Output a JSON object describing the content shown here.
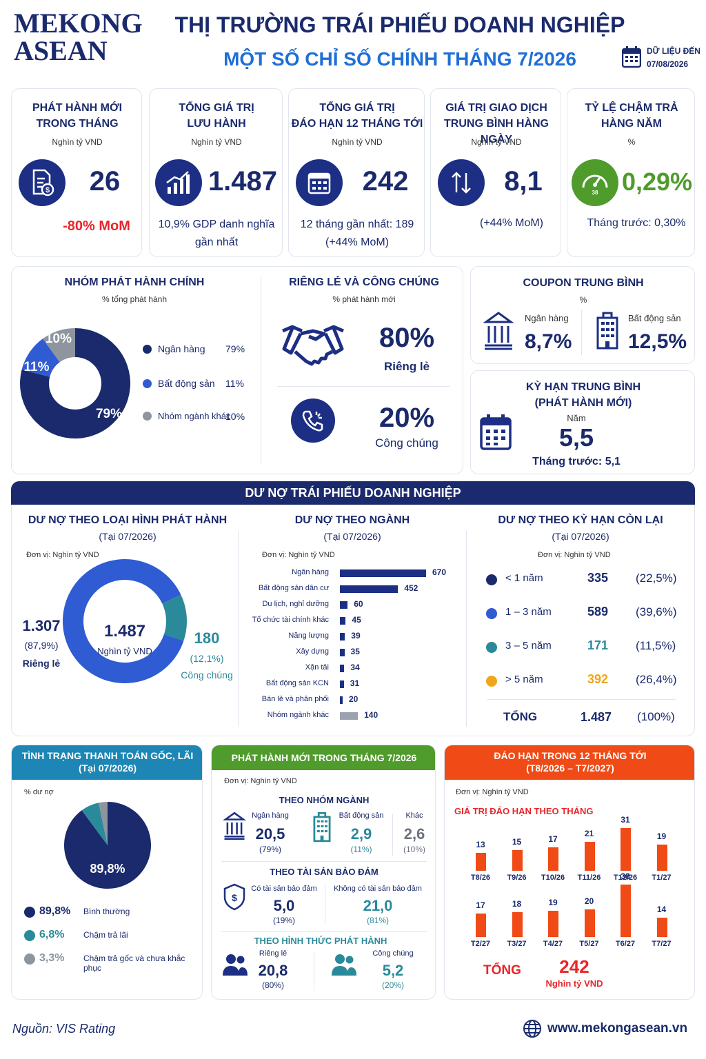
{
  "brand": {
    "line1": "MEKONG",
    "line2": "ASEAN"
  },
  "header": {
    "title": "THỊ TRƯỜNG TRÁI PHIẾU DOANH NGHIỆP",
    "subtitle": "MỘT SỐ CHỈ SỐ CHÍNH THÁNG 7/2026",
    "date_label": "DỮ LIỆU ĐẾN",
    "date_value": "07/08/2026"
  },
  "kpis": [
    {
      "title1": "PHÁT HÀNH MỚI",
      "title2": "TRONG THÁNG",
      "unit": "Nghìn tỷ VND",
      "value": "26",
      "note1": "-80% MoM",
      "note2": ""
    },
    {
      "title1": "TỔNG GIÁ TRỊ",
      "title2": "LƯU HÀNH",
      "unit": "Nghìn tỷ VND",
      "value": "1.487",
      "note1": "10,9% GDP danh nghĩa",
      "note2": "gần nhất"
    },
    {
      "title1": "TỔNG GIÁ TRỊ",
      "title2": "ĐÁO HẠN 12 THÁNG TỚI",
      "unit": "Nghìn tỷ VND",
      "value": "242",
      "note1": "12 tháng gần nhất: 189",
      "note2": "(+44% MoM)"
    },
    {
      "title1": "GIÁ TRỊ GIAO DỊCH",
      "title2": "TRUNG BÌNH HÀNG NGÀY",
      "unit": "Nghìn tỷ VND",
      "value": "8,1",
      "note1": "(+44% MoM)",
      "note2": ""
    },
    {
      "title1": "TỶ LỆ CHẬM TRẢ",
      "title2": "HÀNG NĂM",
      "unit": "%",
      "value": "0,29%",
      "note1": "Tháng trước: 0,30%",
      "note2": "",
      "gauge_label": "38"
    }
  ],
  "issuer_group": {
    "title": "NHÓM PHÁT HÀNH CHÍNH",
    "subtitle": "% tổng phát hành",
    "legend": [
      {
        "name": "Ngân hàng",
        "value": "79%"
      },
      {
        "name": "Bất động sản",
        "value": "11%"
      },
      {
        "name": "Nhóm ngành khác",
        "value": "10%"
      }
    ],
    "slice_labels": [
      "79%",
      "11%",
      "10%"
    ]
  },
  "private_public": {
    "title": "RIÊNG LẺ VÀ CÔNG CHÚNG",
    "subtitle": "% phát hành mới",
    "private_value": "80%",
    "private_label": "Riêng lẻ",
    "public_value": "20%",
    "public_label": "Công chúng"
  },
  "coupon": {
    "title": "COUPON TRUNG BÌNH",
    "unit": "%",
    "bank_label": "Ngân hàng",
    "bank_value": "8,7%",
    "re_label": "Bất động sản",
    "re_value": "12,5%"
  },
  "tenor": {
    "title1": "KỲ HẠN TRUNG BÌNH",
    "title2": "(PHÁT HÀNH MỚI)",
    "unit": "Năm",
    "value": "5,5",
    "prev": "Tháng trước: 5,1"
  },
  "debt_section": {
    "title": "DƯ NỢ TRÁI PHIẾU DOANH NGHIỆP"
  },
  "debt_type": {
    "title": "DƯ NỢ THEO LOẠI HÌNH PHÁT HÀNH",
    "date": "(Tại 07/2026)",
    "unit": "Đơn vị: Nghìn tỷ VND",
    "center_value": "1.487",
    "center_unit": "Nghìn tỷ VND",
    "private_value": "1.307",
    "private_pct": "(87,9%)",
    "private_label": "Riêng lẻ",
    "public_value": "180",
    "public_pct": "(12,1%)",
    "public_label": "Công chúng"
  },
  "debt_sector": {
    "title": "DƯ NỢ THEO NGÀNH",
    "date": "(Tại 07/2026)",
    "unit": "Đơn vị: Nghìn tỷ VND"
  },
  "debt_maturity": {
    "title": "DƯ NỢ THEO KỲ HẠN CÒN LẠI",
    "date": "(Tại 07/2026)",
    "unit": "Đơn vị: Nghìn tỷ VND",
    "rows": [
      {
        "label": "< 1 năm",
        "value": "335",
        "pct": "(22,5%)",
        "color": "#1a2a6c"
      },
      {
        "label": "1 – 3 năm",
        "value": "589",
        "pct": "(39,6%)",
        "color": "#2f5bd3"
      },
      {
        "label": "3 – 5 năm",
        "value": "171",
        "pct": "(11,5%)",
        "color": "#2a8a9a"
      },
      {
        "label": "> 5 năm",
        "value": "392",
        "pct": "(26,4%)",
        "color": "#f0a51a"
      }
    ],
    "total_label": "TỔNG",
    "total_value": "1.487",
    "total_pct": "(100%)"
  },
  "payment": {
    "title1": "TÌNH TRẠNG THANH TOÁN GỐC, LÃI",
    "title2": "(Tại 07/2026)",
    "unit": "% dư nợ",
    "center": "89,8%",
    "legend": [
      {
        "value": "89,8%",
        "label": "Bình thường",
        "color": "#1a2a6c"
      },
      {
        "value": "6,8%",
        "label": "Chậm trả lãi",
        "color": "#2a8a9a"
      },
      {
        "value": "3,3%",
        "label": "Chậm trả gốc và chưa khắc phục",
        "color": "#8e959f"
      }
    ]
  },
  "new_issue": {
    "title": "PHÁT HÀNH MỚI TRONG THÁNG 7/2026",
    "unit": "Đơn vị: Nghìn tỷ VND",
    "by_sector_title": "THEO NHÓM NGÀNH",
    "sectors": [
      {
        "label": "Ngân hàng",
        "value": "20,5",
        "pct": "(79%)"
      },
      {
        "label": "Bất động sản",
        "value": "2,9",
        "pct": "(11%)"
      },
      {
        "label": "Khác",
        "value": "2,6",
        "pct": "(10%)"
      }
    ],
    "by_collateral_title": "THEO TÀI SẢN BẢO ĐẢM",
    "collateral": [
      {
        "label": "Có tài sản bảo đảm",
        "value": "5,0",
        "pct": "(19%)"
      },
      {
        "label": "Không có tài sản bảo đảm",
        "value": "21,0",
        "pct": "(81%)"
      }
    ],
    "by_form_title": "THEO HÌNH THỨC PHÁT HÀNH",
    "forms": [
      {
        "label": "Riêng lẻ",
        "value": "20,8",
        "pct": "(80%)"
      },
      {
        "label": "Công chúng",
        "value": "5,2",
        "pct": "(20%)"
      }
    ]
  },
  "maturity12": {
    "title1": "ĐÁO HẠN TRONG 12 THÁNG TỚI",
    "title2": "(T8/2026 – T7/2027)",
    "unit": "Đơn vị: Nghìn tỷ VND",
    "chart_title": "GIÁ TRỊ ĐÁO HẠN THEO THÁNG",
    "total_label": "TỔNG",
    "total_value": "242",
    "total_unit": "Nghìn tỷ VND"
  },
  "footer": {
    "source": "Nguồn: VIS Rating",
    "website": "www.mekongasean.vn"
  },
  "chart_data": [
    {
      "type": "pie",
      "title": "NHÓM PHÁT HÀNH CHÍNH",
      "categories": [
        "Ngân hàng",
        "Bất động sản",
        "Nhóm ngành khác"
      ],
      "values": [
        79,
        11,
        10
      ]
    },
    {
      "type": "pie",
      "title": "DƯ NỢ THEO LOẠI HÌNH PHÁT HÀNH",
      "categories": [
        "Riêng lẻ",
        "Công chúng"
      ],
      "values": [
        1307,
        180
      ]
    },
    {
      "type": "bar",
      "title": "DƯ NỢ THEO NGÀNH",
      "categories": [
        "Ngân hàng",
        "Bất động sản dân cư",
        "Du lịch, nghỉ dưỡng",
        "Tổ chức tài chính khác",
        "Năng lượng",
        "Xây dựng",
        "Xận tải",
        "Bất động sản KCN",
        "Bán lẻ và phân phối",
        "Nhóm ngành khác"
      ],
      "values": [
        670,
        452,
        60,
        45,
        39,
        35,
        34,
        31,
        20,
        140
      ],
      "xlim": [
        0,
        670
      ]
    },
    {
      "type": "pie",
      "title": "TÌNH TRẠNG THANH TOÁN GỐC, LÃI",
      "categories": [
        "Bình thường",
        "Chậm trả lãi",
        "Chậm trả gốc và chưa khắc phục"
      ],
      "values": [
        89.8,
        6.8,
        3.3
      ]
    },
    {
      "type": "bar",
      "title": "GIÁ TRỊ ĐÁO HẠN THEO THÁNG",
      "categories": [
        "T8/26",
        "T9/26",
        "T10/26",
        "T11/26",
        "T12/26",
        "T1/27",
        "T2/27",
        "T3/27",
        "T4/27",
        "T5/27",
        "T6/27",
        "T7/27"
      ],
      "values": [
        13,
        15,
        17,
        21,
        31,
        19,
        17,
        18,
        19,
        20,
        38,
        14
      ]
    }
  ]
}
